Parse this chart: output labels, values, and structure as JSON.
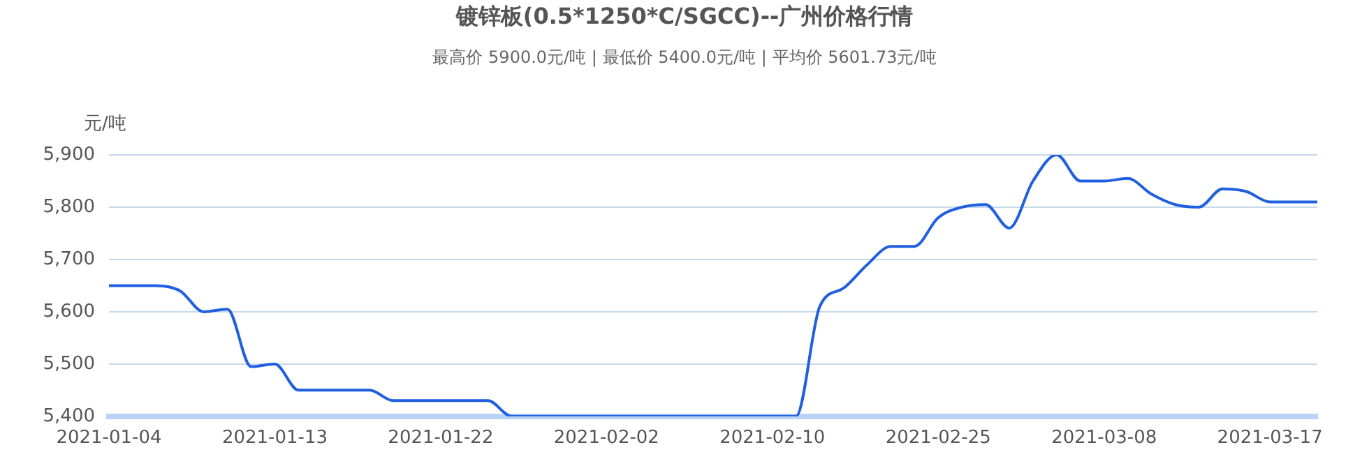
{
  "chart_data": {
    "type": "line",
    "title": "镀锌板(0.5*1250*C/SGCC)--广州价格行情",
    "subtitle": "最高价 5900.0元/吨 | 最低价 5400.0元/吨 | 平均价 5601.73元/吨",
    "ylabel": "元/吨",
    "categories": [
      "2021-01-04",
      null,
      null,
      null,
      null,
      null,
      null,
      "2021-01-13",
      null,
      null,
      null,
      null,
      null,
      null,
      "2021-01-22",
      null,
      null,
      null,
      null,
      null,
      null,
      "2021-02-02",
      null,
      null,
      null,
      null,
      null,
      null,
      "2021-02-10",
      null,
      null,
      null,
      null,
      null,
      null,
      "2021-02-25",
      null,
      null,
      null,
      null,
      null,
      null,
      "2021-03-08",
      null,
      null,
      null,
      null,
      null,
      null,
      "2021-03-17",
      null,
      null
    ],
    "series": [
      {
        "color": "#1f5fe0",
        "values": [
          5650,
          5650,
          5650,
          5640,
          5600,
          5605,
          5495,
          5500,
          5450,
          5450,
          5450,
          5450,
          5430,
          5430,
          5430,
          5430,
          5430,
          5400,
          5400,
          5400,
          5400,
          5400,
          5400,
          5400,
          5400,
          5400,
          5400,
          5400,
          5400,
          5400,
          5610,
          5645,
          5690,
          5725,
          5725,
          5780,
          5800,
          5805,
          5760,
          5850,
          5900,
          5850,
          5850,
          5855,
          5825,
          5805,
          5800,
          5835,
          5830,
          5810,
          5810,
          5810
        ]
      }
    ],
    "ylim": [
      5400,
      5900
    ],
    "yticks": [
      {
        "value": 5400,
        "label": "5,400"
      },
      {
        "value": 5500,
        "label": "5,500"
      },
      {
        "value": 5600,
        "label": "5,600"
      },
      {
        "value": 5700,
        "label": "5,700"
      },
      {
        "value": 5800,
        "label": "5,800"
      },
      {
        "value": 5900,
        "label": "5,900"
      }
    ],
    "grid": "y",
    "legend": false,
    "marker": "none",
    "line_style": "solid"
  }
}
